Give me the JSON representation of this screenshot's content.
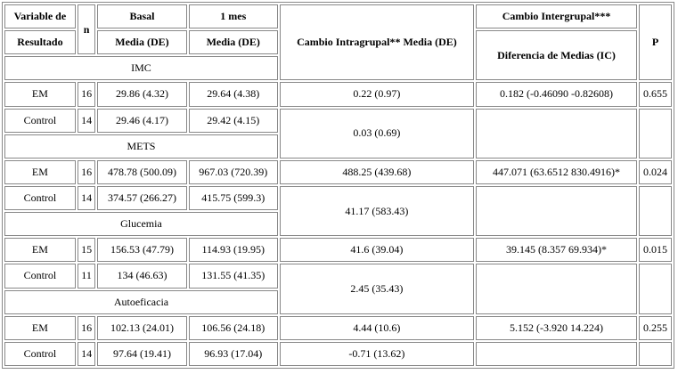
{
  "header": {
    "variable": [
      "Variable de",
      "Resultado"
    ],
    "n": "n",
    "basal": "Basal",
    "one_month": "1 mes",
    "mean_sd": [
      "Media (DE)",
      "Media (DE)"
    ],
    "intra": "Cambio Intragrupal** Media (DE)",
    "inter": "Cambio Intergrupal***",
    "inter_sub": "Diferencia de Medias (IC)",
    "p": "P"
  },
  "groups": [
    {
      "name": "IMC",
      "rows": [
        {
          "group": "EM",
          "n": "16",
          "basal": "29.86 (4.32)",
          "one_month": "29.64 (4.38)",
          "intra": "0.22 (0.97)",
          "inter": "0.182 (-0.46090 -0.82608)",
          "p": "0.655"
        },
        {
          "group": "Control",
          "n": "14",
          "basal": "29.46 (4.17)",
          "one_month": "29.42 (4.15)",
          "intra": "0.03 (0.69)"
        }
      ]
    },
    {
      "name": "METS",
      "rows": [
        {
          "group": "EM",
          "n": "16",
          "basal": "478.78 (500.09)",
          "one_month": "967.03 (720.39)",
          "intra": "488.25 (439.68)",
          "inter": "447.071 (63.6512 830.4916)*",
          "p": "0.024"
        },
        {
          "group": "Control",
          "n": "14",
          "basal": "374.57 (266.27)",
          "one_month": "415.75 (599.3)",
          "intra": "41.17 (583.43)"
        }
      ]
    },
    {
      "name": "Glucemia",
      "rows": [
        {
          "group": "EM",
          "n": "15",
          "basal": "156.53 (47.79)",
          "one_month": "114.93 (19.95)",
          "intra": "41.6 (39.04)",
          "inter": "39.145 (8.357 69.934)*",
          "p": "0.015"
        },
        {
          "group": "Control",
          "n": "11",
          "basal": "134 (46.63)",
          "one_month": "131.55 (41.35)",
          "intra": "2.45 (35.43)"
        }
      ]
    },
    {
      "name": "Autoeficacia",
      "rows": [
        {
          "group": "EM",
          "n": "16",
          "basal": "102.13 (24.01)",
          "one_month": "106.56 (24.18)",
          "intra": "4.44 (10.6)",
          "inter": "5.152 (-3.920 14.224)",
          "p": "0.255"
        },
        {
          "group": "Control",
          "n": "14",
          "basal": "97.64 (19.41)",
          "one_month": "96.93 (17.04)",
          "intra": "-0.71 (13.62)"
        }
      ]
    }
  ]
}
